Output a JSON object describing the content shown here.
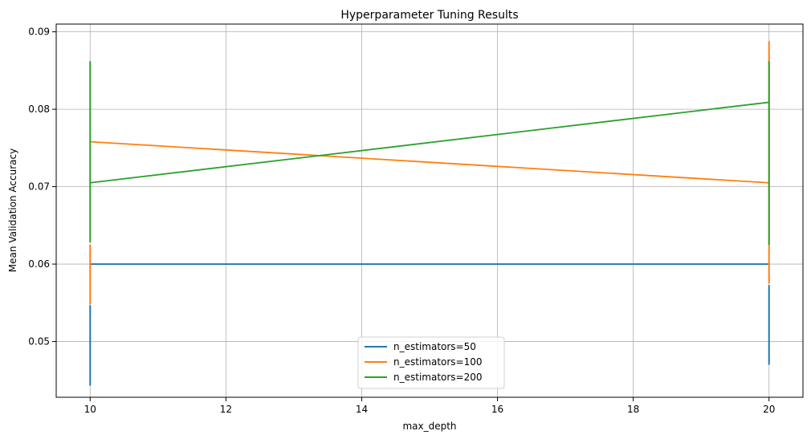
{
  "chart_data": {
    "type": "line",
    "title": "Hyperparameter Tuning Results",
    "xlabel": "max_depth",
    "ylabel": "Mean Validation Accuracy",
    "xlim": [
      9.5,
      20.5
    ],
    "ylim": [
      0.0428,
      0.091
    ],
    "xticks": [
      10,
      12,
      14,
      16,
      18,
      20
    ],
    "xtick_labels": [
      "10",
      "12",
      "14",
      "16",
      "18",
      "20"
    ],
    "yticks": [
      0.05,
      0.06,
      0.07,
      0.08,
      0.09
    ],
    "ytick_labels": [
      "0.05",
      "0.06",
      "0.07",
      "0.08",
      "0.09"
    ],
    "grid": true,
    "legend_position": "bottom-center",
    "series": [
      {
        "name": "n_estimators=50",
        "color": "#1f77b4",
        "x": [
          10,
          20
        ],
        "y": [
          0.06,
          0.06
        ],
        "error": [
          {
            "x": 10,
            "low": 0.0443,
            "high": 0.0547
          },
          {
            "x": 20,
            "low": 0.047,
            "high": 0.0573
          }
        ]
      },
      {
        "name": "n_estimators=100",
        "color": "#ff7f0e",
        "x": [
          10,
          20
        ],
        "y": [
          0.0758,
          0.0705
        ],
        "error": [
          {
            "x": 10,
            "low": 0.0548,
            "high": 0.0625
          },
          {
            "x": 20,
            "low": 0.0575,
            "high": 0.0888
          }
        ]
      },
      {
        "name": "n_estimators=200",
        "color": "#2ca02c",
        "x": [
          10,
          20
        ],
        "y": [
          0.0705,
          0.0809
        ],
        "error": [
          {
            "x": 10,
            "low": 0.0628,
            "high": 0.0862
          },
          {
            "x": 20,
            "low": 0.0625,
            "high": 0.0862
          }
        ]
      }
    ]
  }
}
